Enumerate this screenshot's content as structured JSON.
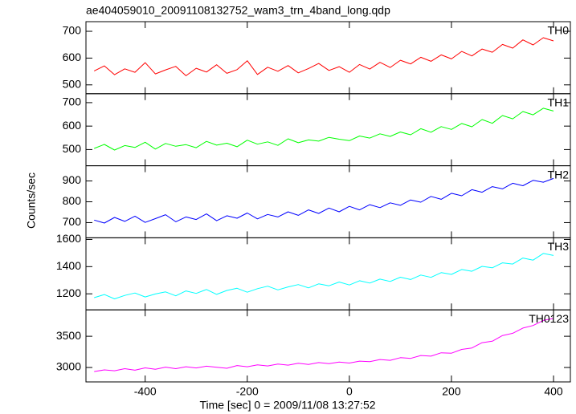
{
  "chart_data": {
    "type": "line",
    "title": "ae404059010_20091108132752_wam3_trn_4band_long.qdp",
    "x_label": "Time [sec] 0 = 2009/11/08 13:27:52",
    "y_label": "Counts/sec",
    "xlim": [
      -516,
      433
    ],
    "xticks": [
      -400,
      -200,
      0,
      200,
      400
    ],
    "x": [
      -500,
      -480,
      -460,
      -440,
      -420,
      -400,
      -380,
      -360,
      -340,
      -320,
      -300,
      -280,
      -260,
      -240,
      -220,
      -200,
      -180,
      -160,
      -140,
      -120,
      -100,
      -80,
      -60,
      -40,
      -20,
      0,
      20,
      40,
      60,
      80,
      100,
      120,
      140,
      160,
      180,
      200,
      220,
      240,
      260,
      280,
      300,
      320,
      340,
      360,
      380,
      400
    ],
    "panels": [
      {
        "ylim": [
          467,
          736
        ],
        "yticks": [
          500,
          600,
          700
        ],
        "series": [
          {
            "name": "TH0",
            "color": "#ff0000",
            "values": [
              552,
              571,
              538,
              560,
              547,
              583,
              541,
              556,
              569,
              534,
              562,
              548,
              575,
              543,
              557,
              590,
              539,
              566,
              551,
              572,
              545,
              561,
              580,
              554,
              568,
              547,
              576,
              559,
              584,
              565,
              592,
              578,
              603,
              588,
              612,
              597,
              625,
              608,
              634,
              622,
              651,
              637,
              668,
              649,
              676,
              664
            ]
          }
        ]
      },
      {
        "ylim": [
          431,
          738
        ],
        "yticks": [
          500,
          600,
          700
        ],
        "series": [
          {
            "name": "TH1",
            "color": "#00ff00",
            "values": [
              505,
              522,
              498,
              517,
              509,
              531,
              502,
              526,
              514,
              521,
              508,
              535,
              519,
              527,
              512,
              540,
              523,
              533,
              518,
              546,
              529,
              541,
              536,
              552,
              544,
              538,
              558,
              549,
              567,
              556,
              575,
              563,
              589,
              574,
              598,
              586,
              611,
              597,
              628,
              612,
              645,
              631,
              662,
              648,
              676,
              664
            ]
          }
        ]
      },
      {
        "ylim": [
          627,
          973
        ],
        "yticks": [
          700,
          800,
          900
        ],
        "series": [
          {
            "name": "TH2",
            "color": "#0000ff",
            "values": [
              712,
              698,
              725,
              706,
              731,
              701,
              719,
              738,
              704,
              727,
              715,
              742,
              709,
              733,
              721,
              746,
              718,
              739,
              727,
              752,
              735,
              761,
              744,
              770,
              752,
              778,
              761,
              786,
              772,
              795,
              783,
              809,
              798,
              826,
              812,
              841,
              829,
              858,
              846,
              873,
              862,
              889,
              877,
              903,
              894,
              912
            ]
          }
        ]
      },
      {
        "ylim": [
          1082,
          1612
        ],
        "yticks": [
          1200,
          1400,
          1600
        ],
        "series": [
          {
            "name": "TH3",
            "color": "#00ffff",
            "values": [
              1172,
              1195,
              1163,
              1188,
              1206,
              1177,
              1199,
              1214,
              1185,
              1221,
              1203,
              1232,
              1196,
              1225,
              1241,
              1212,
              1238,
              1256,
              1229,
              1251,
              1268,
              1244,
              1273,
              1259,
              1287,
              1265,
              1296,
              1279,
              1308,
              1291,
              1322,
              1305,
              1338,
              1321,
              1356,
              1343,
              1379,
              1366,
              1402,
              1391,
              1428,
              1419,
              1463,
              1448,
              1497,
              1482
            ]
          }
        ]
      },
      {
        "ylim": [
          2769,
          3923
        ],
        "yticks": [
          3000,
          3500
        ],
        "series": [
          {
            "name": "TH0123",
            "color": "#ff00ff",
            "values": [
              2935,
              2962,
              2948,
              2981,
              2957,
              2994,
              2972,
              3006,
              2981,
              3012,
              2993,
              3021,
              3004,
              2988,
              3031,
              3012,
              3042,
              3025,
              3054,
              3038,
              3067,
              3049,
              3079,
              3062,
              3088,
              3071,
              3102,
              3094,
              3128,
              3115,
              3157,
              3146,
              3192,
              3181,
              3236,
              3229,
              3289,
              3312,
              3398,
              3421,
              3512,
              3548,
              3631,
              3672,
              3754,
              3786
            ]
          }
        ]
      }
    ]
  }
}
